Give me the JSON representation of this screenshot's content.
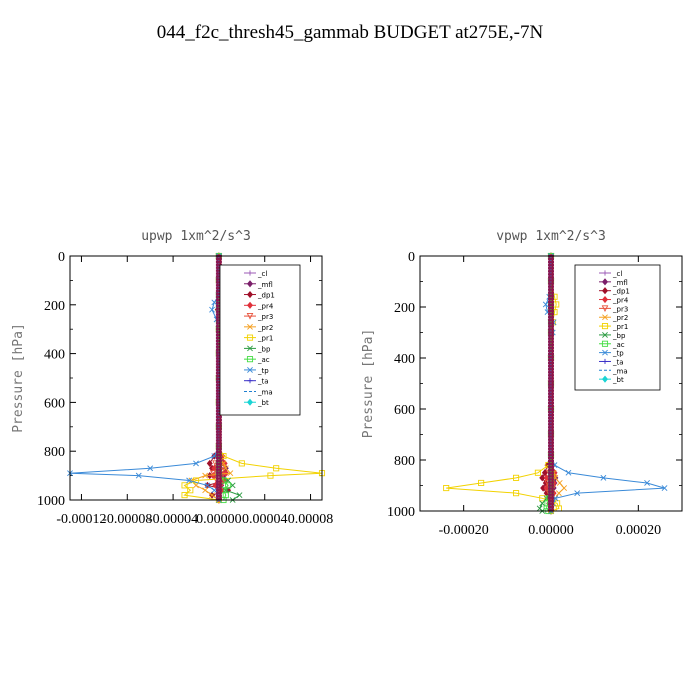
{
  "title": "044_f2c_thresh45_gammab  BUDGET at275E,-7N",
  "chart_data": [
    {
      "type": "line",
      "title": "upwp   1xm^2/s^3",
      "ylabel": "Pressure [hPa]",
      "xlabel": "",
      "xlim": [
        -0.00013,
        9e-05
      ],
      "ylim": [
        1000,
        0
      ],
      "grid": false,
      "legend_position": "top-right",
      "xticks": [
        "-0.00012",
        "-0.00008",
        "-0.00004",
        "0.00000",
        "0.00004",
        "0.00008"
      ],
      "xtick_values": [
        -0.00012,
        -8e-05,
        -4e-05,
        0.0,
        4e-05,
        8e-05
      ],
      "yticks": [
        "0",
        "200",
        "400",
        "600",
        "800",
        "1000"
      ],
      "ytick_values": [
        0,
        200,
        400,
        600,
        800,
        1000
      ],
      "y": [
        0,
        100,
        160,
        190,
        220,
        260,
        300,
        400,
        500,
        600,
        700,
        780,
        820,
        850,
        870,
        890,
        900,
        920,
        940,
        960,
        980,
        1000
      ],
      "series": [
        {
          "name": "_cl",
          "color": "#9b59b6",
          "marker": "+",
          "dash": "",
          "values": [
            0,
            0,
            0,
            0,
            0,
            0,
            0,
            0,
            0,
            0,
            0,
            0,
            0,
            0,
            0,
            0,
            0,
            0,
            0,
            0,
            0,
            0
          ]
        },
        {
          "name": "_mfl",
          "color": "#7b1f6a",
          "marker": "diamond",
          "dash": "",
          "values": [
            0,
            0,
            0,
            0,
            0,
            0,
            0,
            0,
            0,
            0,
            0,
            0,
            2e-06,
            4e-06,
            6e-06,
            5e-06,
            4e-06,
            3e-06,
            2e-06,
            1e-06,
            0,
            0
          ]
        },
        {
          "name": "_dp1",
          "color": "#a0102a",
          "marker": "diamond",
          "dash": "",
          "values": [
            0,
            0,
            0,
            1e-06,
            -1e-06,
            0,
            0,
            0,
            0,
            0,
            0,
            0,
            -4e-06,
            -8e-06,
            -6e-06,
            6e-06,
            -8e-06,
            6e-06,
            -1e-05,
            8e-06,
            -6e-06,
            0
          ]
        },
        {
          "name": "_pr4",
          "color": "#e0303a",
          "marker": "diamond",
          "dash": "",
          "values": [
            0,
            0,
            0,
            0,
            0,
            0,
            0,
            0,
            0,
            0,
            0,
            0,
            3e-06,
            5e-06,
            -4e-06,
            6e-06,
            -5e-06,
            4e-06,
            -3e-06,
            2e-06,
            0,
            0
          ]
        },
        {
          "name": "_pr3",
          "color": "#e8503a",
          "marker": "triangle",
          "dash": "",
          "values": [
            0,
            0,
            0,
            0,
            0,
            0,
            0,
            0,
            0,
            0,
            0,
            0,
            0,
            -3e-06,
            4e-06,
            -5e-06,
            3e-06,
            -2e-06,
            2e-06,
            0,
            0,
            0
          ]
        },
        {
          "name": "_pr2",
          "color": "#f5a020",
          "marker": "x",
          "dash": "",
          "values": [
            0,
            0,
            0,
            0,
            0,
            0,
            0,
            0,
            0,
            0,
            0,
            0,
            0,
            4e-06,
            6e-06,
            1e-05,
            -1.2e-05,
            -2.4e-05,
            -2e-05,
            -1.2e-05,
            -6e-06,
            0
          ]
        },
        {
          "name": "_pr1",
          "color": "#f2d200",
          "marker": "square",
          "dash": "",
          "values": [
            0,
            0,
            4e-06,
            6e-06,
            4e-06,
            2e-06,
            0,
            0,
            0,
            0,
            0,
            0,
            4e-06,
            2e-05,
            5e-05,
            9e-05,
            4.5e-05,
            -2e-05,
            -3e-05,
            -2.5e-05,
            -3e-05,
            0
          ]
        },
        {
          "name": "_bp",
          "color": "#2a9a40",
          "marker": "x",
          "dash": "",
          "values": [
            0,
            0,
            0,
            0,
            0,
            0,
            0,
            0,
            0,
            0,
            0,
            0,
            0,
            0,
            0,
            0,
            0,
            8e-06,
            1.2e-05,
            6e-06,
            1.8e-05,
            1.2e-05
          ]
        },
        {
          "name": "_ac",
          "color": "#44dd44",
          "marker": "square",
          "dash": "",
          "values": [
            0,
            0,
            0,
            0,
            0,
            0,
            0,
            0,
            0,
            0,
            0,
            0,
            0,
            0,
            0,
            0,
            0,
            4e-06,
            8e-06,
            4e-06,
            6e-06,
            4e-06
          ]
        },
        {
          "name": "_tp",
          "color": "#3a8ad8",
          "marker": "x",
          "dash": "",
          "values": [
            0,
            0,
            0,
            -4e-06,
            -6e-06,
            -2e-06,
            4e-06,
            0,
            0,
            0,
            0,
            0,
            -4e-06,
            -2e-05,
            -6e-05,
            -0.00013,
            -7e-05,
            -2.6e-05,
            -1e-05,
            -4e-06,
            0,
            0
          ]
        },
        {
          "name": "_ta",
          "color": "#3a30c8",
          "marker": "+",
          "dash": "",
          "values": [
            0,
            0,
            0,
            0,
            0,
            0,
            0,
            0,
            0,
            0,
            0,
            0,
            0,
            0,
            0,
            0,
            0,
            0,
            0,
            0,
            0,
            0
          ]
        },
        {
          "name": "_ma",
          "color": "#1e7fd0",
          "marker": "none",
          "dash": "6,4",
          "values": [
            0,
            0,
            0,
            0,
            0,
            0,
            0,
            0,
            0,
            0,
            0,
            0,
            0,
            0,
            0,
            0,
            0,
            0,
            0,
            0,
            0,
            0
          ]
        },
        {
          "name": "_bt",
          "color": "#19d4d4",
          "marker": "diamond",
          "dash": "",
          "values": [
            0,
            0,
            0,
            0,
            0,
            0,
            0,
            0,
            0,
            0,
            0,
            0,
            0,
            0,
            0,
            0,
            0,
            0,
            0,
            0,
            0,
            0
          ]
        }
      ]
    },
    {
      "type": "line",
      "title": "vpwp   1xm^2/s^3",
      "ylabel": "Pressure [hPa]",
      "xlabel": "",
      "xlim": [
        -0.0003,
        0.0003
      ],
      "ylim": [
        1000,
        0
      ],
      "grid": false,
      "legend_position": "top-right",
      "xticks": [
        "-0.00020",
        "0.00000",
        "0.00020"
      ],
      "xtick_values": [
        -0.0002,
        0.0,
        0.0002
      ],
      "yticks": [
        "0",
        "200",
        "400",
        "600",
        "800",
        "1000"
      ],
      "ytick_values": [
        0,
        200,
        400,
        600,
        800,
        1000
      ],
      "y": [
        0,
        100,
        160,
        190,
        220,
        260,
        300,
        400,
        500,
        600,
        700,
        780,
        820,
        850,
        870,
        890,
        910,
        930,
        950,
        970,
        990,
        1000
      ],
      "series": [
        {
          "name": "_cl",
          "color": "#9b59b6",
          "marker": "+",
          "dash": "",
          "values": [
            0,
            0,
            0,
            0,
            0,
            0,
            0,
            0,
            0,
            0,
            0,
            0,
            0,
            0,
            0,
            0,
            0,
            0,
            0,
            0,
            0,
            0
          ]
        },
        {
          "name": "_mfl",
          "color": "#7b1f6a",
          "marker": "diamond",
          "dash": "",
          "values": [
            0,
            0,
            0,
            0,
            0,
            0,
            0,
            0,
            0,
            0,
            0,
            0,
            4e-06,
            8e-06,
            1e-05,
            8e-06,
            6e-06,
            4e-06,
            2e-06,
            0,
            0,
            0
          ]
        },
        {
          "name": "_dp1",
          "color": "#a0102a",
          "marker": "diamond",
          "dash": "",
          "values": [
            0,
            0,
            0,
            0,
            0,
            0,
            0,
            0,
            0,
            0,
            0,
            0,
            -8e-06,
            -1.4e-05,
            -2e-05,
            -1.2e-05,
            -1.8e-05,
            -1e-05,
            -6e-06,
            -4e-06,
            0,
            0
          ]
        },
        {
          "name": "_pr4",
          "color": "#e0303a",
          "marker": "diamond",
          "dash": "",
          "values": [
            0,
            0,
            0,
            0,
            0,
            0,
            0,
            0,
            0,
            0,
            0,
            0,
            4e-06,
            8e-06,
            -1e-05,
            6e-06,
            -1e-05,
            6e-06,
            -4e-06,
            2e-06,
            0,
            0
          ]
        },
        {
          "name": "_pr3",
          "color": "#e8503a",
          "marker": "triangle",
          "dash": "",
          "values": [
            0,
            0,
            0,
            0,
            0,
            0,
            0,
            0,
            0,
            0,
            0,
            0,
            0,
            -4e-06,
            6e-06,
            -8e-06,
            4e-06,
            -4e-06,
            2e-06,
            0,
            0,
            0
          ]
        },
        {
          "name": "_pr2",
          "color": "#f5a020",
          "marker": "x",
          "dash": "",
          "values": [
            0,
            0,
            0,
            0,
            0,
            0,
            0,
            0,
            0,
            0,
            0,
            0,
            0,
            6e-06,
            1e-05,
            2e-05,
            3e-05,
            1.8e-05,
            1e-05,
            6e-06,
            0,
            0
          ]
        },
        {
          "name": "_pr1",
          "color": "#f2d200",
          "marker": "square",
          "dash": "",
          "values": [
            0,
            0,
            8e-06,
            1.2e-05,
            8e-06,
            4e-06,
            0,
            0,
            0,
            0,
            0,
            0,
            -6e-06,
            -3e-05,
            -8e-05,
            -0.00016,
            -0.00024,
            -8e-05,
            -2e-05,
            1.4e-05,
            1.8e-05,
            0
          ]
        },
        {
          "name": "_bp",
          "color": "#2a9a40",
          "marker": "x",
          "dash": "",
          "values": [
            0,
            0,
            0,
            0,
            0,
            0,
            0,
            0,
            0,
            0,
            0,
            0,
            0,
            0,
            0,
            0,
            0,
            0,
            -1e-05,
            -2e-05,
            -2.6e-05,
            -2e-05
          ]
        },
        {
          "name": "_ac",
          "color": "#44dd44",
          "marker": "square",
          "dash": "",
          "values": [
            0,
            0,
            0,
            0,
            0,
            0,
            0,
            0,
            0,
            0,
            0,
            0,
            0,
            0,
            0,
            0,
            0,
            0,
            -4e-06,
            -8e-06,
            -1e-05,
            -6e-06
          ]
        },
        {
          "name": "_tp",
          "color": "#3a8ad8",
          "marker": "x",
          "dash": "",
          "values": [
            0,
            0,
            -4e-06,
            -1.2e-05,
            -8e-06,
            6e-06,
            4e-06,
            0,
            0,
            0,
            0,
            0,
            8e-06,
            4e-05,
            0.00012,
            0.00022,
            0.00026,
            6e-05,
            1e-05,
            4e-06,
            0,
            0
          ]
        },
        {
          "name": "_ta",
          "color": "#3a30c8",
          "marker": "+",
          "dash": "",
          "values": [
            0,
            0,
            0,
            0,
            0,
            0,
            0,
            0,
            0,
            0,
            0,
            0,
            0,
            0,
            0,
            0,
            0,
            0,
            0,
            0,
            0,
            0
          ]
        },
        {
          "name": "_ma",
          "color": "#1e7fd0",
          "marker": "none",
          "dash": "6,4",
          "values": [
            0,
            0,
            0,
            0,
            0,
            0,
            0,
            0,
            0,
            0,
            0,
            0,
            0,
            0,
            0,
            0,
            0,
            0,
            0,
            0,
            0,
            0
          ]
        },
        {
          "name": "_bt",
          "color": "#19d4d4",
          "marker": "diamond",
          "dash": "",
          "values": [
            0,
            0,
            0,
            0,
            0,
            0,
            0,
            0,
            0,
            0,
            0,
            0,
            0,
            0,
            0,
            0,
            0,
            0,
            0,
            0,
            0,
            0
          ]
        }
      ]
    }
  ]
}
